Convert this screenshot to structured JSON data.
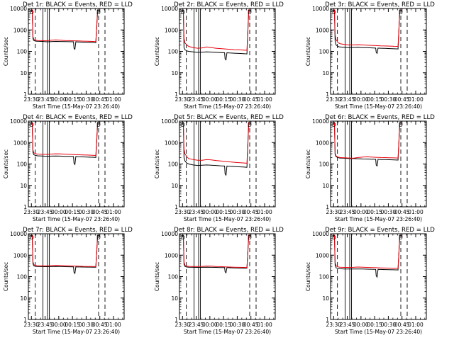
{
  "figure": {
    "title_template": "Det {det}: BLACK = Events, RED = LLD",
    "x_axis_label": "Start Time (15-May-07 23:26:40)",
    "y_axis_label": "Counts/sec",
    "x_ticks": [
      "23:30",
      "23:45",
      "00:00",
      "00:15",
      "00:30",
      "00:45",
      "01:00"
    ],
    "y_ticks": [
      "1",
      "10",
      "100",
      "1000",
      "10000"
    ],
    "legend_marks": [
      "D",
      "D"
    ],
    "colors": {
      "events": "#000000",
      "lld": "#e8000b",
      "axes": "#000000",
      "background": "#ffffff"
    }
  },
  "chart_data": [
    {
      "type": "line",
      "det": "1r",
      "title": "Det 1r: BLACK = Events, RED = LLD",
      "xlabel": "Start Time (15-May-07 23:26:40)",
      "ylabel": "Counts/sec",
      "x_unit": "minutes after 23:26:40",
      "xlim": [
        0,
        105
      ],
      "ylim": [
        1,
        10000
      ],
      "yscale": "log",
      "series": [
        {
          "name": "Events",
          "color": "#000000",
          "x": [
            4.2,
            5,
            6,
            8,
            10,
            15,
            20,
            25,
            30,
            35,
            40,
            45,
            49.5,
            50,
            51,
            52,
            55,
            60,
            65,
            70,
            74,
            76
          ],
          "y": [
            9000,
            400,
            320,
            300,
            295,
            290,
            280,
            285,
            290,
            288,
            285,
            282,
            280,
            140,
            125,
            280,
            275,
            270,
            265,
            260,
            255,
            9000
          ]
        },
        {
          "name": "LLD",
          "color": "#e8000b",
          "x": [
            4.2,
            5,
            6,
            8,
            10,
            15,
            20,
            25,
            30,
            35,
            40,
            45,
            50,
            55,
            60,
            65,
            70,
            74,
            76
          ],
          "y": [
            9000,
            500,
            360,
            330,
            320,
            315,
            310,
            330,
            340,
            330,
            320,
            315,
            310,
            305,
            300,
            295,
            290,
            285,
            9000
          ]
        }
      ],
      "solid_lines_x": [
        16,
        21,
        23
      ],
      "dashed_lines_x": [
        7.5,
        77,
        84
      ]
    },
    {
      "type": "line",
      "det": "2r",
      "title": "Det 2r: BLACK = Events, RED = LLD",
      "xlabel": "Start Time (15-May-07 23:26:40)",
      "ylabel": "Counts/sec",
      "x_unit": "minutes after 23:26:40",
      "xlim": [
        0,
        105
      ],
      "ylim": [
        1,
        10000
      ],
      "yscale": "log",
      "series": [
        {
          "name": "Events",
          "color": "#000000",
          "x": [
            4.2,
            5,
            6,
            8,
            10,
            15,
            20,
            25,
            30,
            35,
            40,
            45,
            49.5,
            50,
            51,
            52,
            55,
            60,
            65,
            70,
            74,
            76
          ],
          "y": [
            9000,
            150,
            120,
            105,
            100,
            95,
            90,
            92,
            95,
            93,
            90,
            88,
            86,
            45,
            40,
            86,
            84,
            82,
            80,
            78,
            76,
            9000
          ]
        },
        {
          "name": "LLD",
          "color": "#e8000b",
          "x": [
            4.2,
            5,
            6,
            8,
            10,
            15,
            20,
            25,
            30,
            35,
            40,
            45,
            50,
            55,
            60,
            65,
            70,
            74,
            76
          ],
          "y": [
            9000,
            400,
            250,
            200,
            170,
            150,
            140,
            145,
            160,
            150,
            140,
            135,
            130,
            125,
            120,
            118,
            115,
            112,
            9000
          ]
        }
      ],
      "solid_lines_x": [
        16,
        21,
        23
      ],
      "dashed_lines_x": [
        7.5,
        77,
        84
      ]
    },
    {
      "type": "line",
      "det": "3r",
      "title": "Det 3r: BLACK = Events, RED = LLD",
      "xlabel": "Start Time (15-May-07 23:26:40)",
      "ylabel": "Counts/sec",
      "x_unit": "minutes after 23:26:40",
      "xlim": [
        0,
        105
      ],
      "ylim": [
        1,
        10000
      ],
      "yscale": "log",
      "series": [
        {
          "name": "Events",
          "color": "#000000",
          "x": [
            4.2,
            5,
            6,
            8,
            10,
            15,
            20,
            25,
            30,
            35,
            40,
            45,
            49.5,
            50,
            51,
            52,
            55,
            60,
            65,
            70,
            74,
            76
          ],
          "y": [
            9000,
            300,
            200,
            170,
            160,
            155,
            150,
            152,
            155,
            150,
            148,
            145,
            142,
            90,
            80,
            142,
            140,
            138,
            135,
            132,
            130,
            9000
          ]
        },
        {
          "name": "LLD",
          "color": "#e8000b",
          "x": [
            4.2,
            5,
            6,
            8,
            10,
            15,
            20,
            25,
            30,
            35,
            40,
            45,
            50,
            55,
            60,
            65,
            70,
            74,
            76
          ],
          "y": [
            9000,
            600,
            350,
            260,
            230,
            210,
            200,
            200,
            205,
            200,
            195,
            190,
            185,
            180,
            178,
            175,
            172,
            170,
            9000
          ]
        }
      ],
      "solid_lines_x": [
        16,
        21,
        23
      ],
      "dashed_lines_x": [
        7.5,
        77,
        84
      ]
    },
    {
      "type": "line",
      "det": "4r",
      "title": "Det 4r: BLACK = Events, RED = LLD",
      "xlabel": "Start Time (15-May-07 23:26:40)",
      "ylabel": "Counts/sec",
      "x_unit": "minutes after 23:26:40",
      "xlim": [
        0,
        105
      ],
      "ylim": [
        1,
        10000
      ],
      "yscale": "log",
      "series": [
        {
          "name": "Events",
          "color": "#000000",
          "x": [
            4.2,
            5,
            6,
            8,
            10,
            15,
            20,
            25,
            30,
            35,
            40,
            45,
            49.5,
            50,
            51,
            52,
            55,
            60,
            65,
            70,
            74,
            76
          ],
          "y": [
            9000,
            350,
            270,
            250,
            240,
            235,
            230,
            232,
            235,
            232,
            228,
            225,
            222,
            110,
            95,
            222,
            218,
            214,
            210,
            206,
            202,
            9000
          ]
        },
        {
          "name": "LLD",
          "color": "#e8000b",
          "x": [
            4.2,
            5,
            6,
            8,
            10,
            15,
            20,
            25,
            30,
            35,
            40,
            45,
            50,
            55,
            60,
            65,
            70,
            74,
            76
          ],
          "y": [
            9000,
            450,
            330,
            300,
            290,
            285,
            280,
            290,
            300,
            295,
            288,
            282,
            276,
            270,
            265,
            260,
            255,
            250,
            9000
          ]
        }
      ],
      "solid_lines_x": [
        16,
        21,
        23
      ],
      "dashed_lines_x": [
        7.5,
        77,
        84
      ]
    },
    {
      "type": "line",
      "det": "5r",
      "title": "Det 5r: BLACK = Events, RED = LLD",
      "xlabel": "Start Time (15-May-07 23:26:40)",
      "ylabel": "Counts/sec",
      "x_unit": "minutes after 23:26:40",
      "xlim": [
        0,
        105
      ],
      "ylim": [
        1,
        10000
      ],
      "yscale": "log",
      "series": [
        {
          "name": "Events",
          "color": "#000000",
          "x": [
            4.2,
            5,
            6,
            8,
            10,
            15,
            20,
            25,
            30,
            35,
            40,
            45,
            49.5,
            50,
            51,
            52,
            55,
            60,
            65,
            70,
            74,
            76
          ],
          "y": [
            9000,
            200,
            140,
            110,
            100,
            90,
            85,
            87,
            90,
            88,
            85,
            82,
            80,
            35,
            30,
            80,
            78,
            76,
            74,
            72,
            70,
            9000
          ]
        },
        {
          "name": "LLD",
          "color": "#e8000b",
          "x": [
            4.2,
            5,
            6,
            8,
            10,
            15,
            20,
            25,
            30,
            35,
            40,
            45,
            50,
            55,
            60,
            65,
            70,
            74,
            76
          ],
          "y": [
            9000,
            500,
            300,
            220,
            180,
            160,
            150,
            150,
            160,
            155,
            145,
            138,
            132,
            126,
            120,
            116,
            112,
            108,
            9000
          ]
        }
      ],
      "solid_lines_x": [
        16,
        21,
        23
      ],
      "dashed_lines_x": [
        7.5,
        77,
        84
      ]
    },
    {
      "type": "line",
      "det": "6r",
      "title": "Det 6r: BLACK = Events, RED = LLD",
      "xlabel": "Start Time (15-May-07 23:26:40)",
      "ylabel": "Counts/sec",
      "x_unit": "minutes after 23:26:40",
      "xlim": [
        0,
        105
      ],
      "ylim": [
        1,
        10000
      ],
      "yscale": "log",
      "series": [
        {
          "name": "Events",
          "color": "#000000",
          "x": [
            4.2,
            5,
            6,
            8,
            10,
            15,
            20,
            25,
            30,
            35,
            40,
            45,
            49.5,
            50,
            51,
            52,
            55,
            60,
            65,
            70,
            74,
            76
          ],
          "y": [
            9000,
            280,
            220,
            200,
            190,
            185,
            180,
            178,
            175,
            172,
            170,
            168,
            165,
            90,
            80,
            165,
            162,
            160,
            158,
            155,
            152,
            9000
          ]
        },
        {
          "name": "LLD",
          "color": "#e8000b",
          "x": [
            4.2,
            5,
            6,
            8,
            10,
            15,
            20,
            25,
            30,
            35,
            40,
            45,
            50,
            55,
            60,
            65,
            70,
            74,
            76
          ],
          "y": [
            9000,
            320,
            240,
            210,
            200,
            195,
            190,
            185,
            200,
            210,
            215,
            210,
            205,
            200,
            198,
            195,
            192,
            190,
            9000
          ]
        }
      ],
      "solid_lines_x": [
        16,
        21,
        23
      ],
      "dashed_lines_x": [
        7.5,
        77,
        84
      ]
    },
    {
      "type": "line",
      "det": "7r",
      "title": "Det 7r: BLACK = Events, RED = LLD",
      "xlabel": "Start Time (15-May-07 23:26:40)",
      "ylabel": "Counts/sec",
      "x_unit": "minutes after 23:26:40",
      "xlim": [
        0,
        105
      ],
      "ylim": [
        1,
        10000
      ],
      "yscale": "log",
      "series": [
        {
          "name": "Events",
          "color": "#000000",
          "x": [
            4.2,
            5,
            6,
            8,
            10,
            15,
            20,
            25,
            30,
            35,
            40,
            45,
            49.5,
            50,
            51,
            52,
            55,
            60,
            65,
            70,
            74,
            76
          ],
          "y": [
            9000,
            400,
            320,
            300,
            295,
            292,
            290,
            292,
            295,
            293,
            290,
            288,
            285,
            160,
            140,
            285,
            282,
            280,
            278,
            276,
            274,
            9000
          ]
        },
        {
          "name": "LLD",
          "color": "#e8000b",
          "x": [
            4.2,
            5,
            6,
            8,
            10,
            15,
            20,
            25,
            30,
            35,
            40,
            45,
            50,
            55,
            60,
            65,
            70,
            74,
            76
          ],
          "y": [
            9000,
            500,
            360,
            330,
            320,
            318,
            315,
            325,
            335,
            330,
            322,
            316,
            310,
            305,
            300,
            298,
            295,
            292,
            9000
          ]
        }
      ],
      "solid_lines_x": [
        16,
        21,
        23
      ],
      "dashed_lines_x": [
        7.5,
        77,
        84
      ]
    },
    {
      "type": "line",
      "det": "8r",
      "title": "Det 8r: BLACK = Events, RED = LLD",
      "xlabel": "Start Time (15-May-07 23:26:40)",
      "ylabel": "Counts/sec",
      "x_unit": "minutes after 23:26:40",
      "xlim": [
        0,
        105
      ],
      "ylim": [
        1,
        10000
      ],
      "yscale": "log",
      "series": [
        {
          "name": "Events",
          "color": "#000000",
          "x": [
            4.2,
            5,
            6,
            8,
            10,
            15,
            20,
            25,
            30,
            35,
            40,
            45,
            49.5,
            50,
            51,
            52,
            55,
            60,
            65,
            70,
            74,
            76
          ],
          "y": [
            9000,
            380,
            300,
            280,
            275,
            272,
            270,
            272,
            275,
            272,
            268,
            265,
            262,
            170,
            150,
            262,
            258,
            255,
            252,
            250,
            248,
            9000
          ]
        },
        {
          "name": "LLD",
          "color": "#e8000b",
          "x": [
            4.2,
            5,
            6,
            8,
            10,
            15,
            20,
            25,
            30,
            35,
            40,
            45,
            50,
            55,
            60,
            65,
            70,
            74,
            76
          ],
          "y": [
            9000,
            480,
            340,
            310,
            300,
            298,
            295,
            300,
            310,
            305,
            298,
            292,
            286,
            280,
            276,
            272,
            268,
            265,
            9000
          ]
        }
      ],
      "solid_lines_x": [
        16,
        21,
        23
      ],
      "dashed_lines_x": [
        7.5,
        77,
        84
      ]
    },
    {
      "type": "line",
      "det": "9r",
      "title": "Det 9r: BLACK = Events, RED = LLD",
      "xlabel": "Start Time (15-May-07 23:26:40)",
      "ylabel": "Counts/sec",
      "x_unit": "minutes after 23:26:40",
      "xlim": [
        0,
        105
      ],
      "ylim": [
        1,
        10000
      ],
      "yscale": "log",
      "series": [
        {
          "name": "Events",
          "color": "#000000",
          "x": [
            4.2,
            5,
            6,
            8,
            10,
            15,
            20,
            25,
            30,
            35,
            40,
            45,
            49.5,
            50,
            51,
            52,
            55,
            60,
            65,
            70,
            74,
            76
          ],
          "y": [
            9000,
            350,
            260,
            240,
            232,
            228,
            225,
            226,
            228,
            226,
            222,
            220,
            218,
            110,
            95,
            218,
            215,
            212,
            210,
            208,
            205,
            9000
          ]
        },
        {
          "name": "LLD",
          "color": "#e8000b",
          "x": [
            4.2,
            5,
            6,
            8,
            10,
            15,
            20,
            25,
            30,
            35,
            40,
            45,
            50,
            55,
            60,
            65,
            70,
            74,
            76
          ],
          "y": [
            9000,
            450,
            320,
            285,
            275,
            270,
            268,
            272,
            280,
            276,
            270,
            265,
            260,
            255,
            252,
            250,
            246,
            242,
            9000
          ]
        }
      ],
      "solid_lines_x": [
        16,
        21,
        23
      ],
      "dashed_lines_x": [
        7.5,
        77,
        84
      ]
    }
  ]
}
